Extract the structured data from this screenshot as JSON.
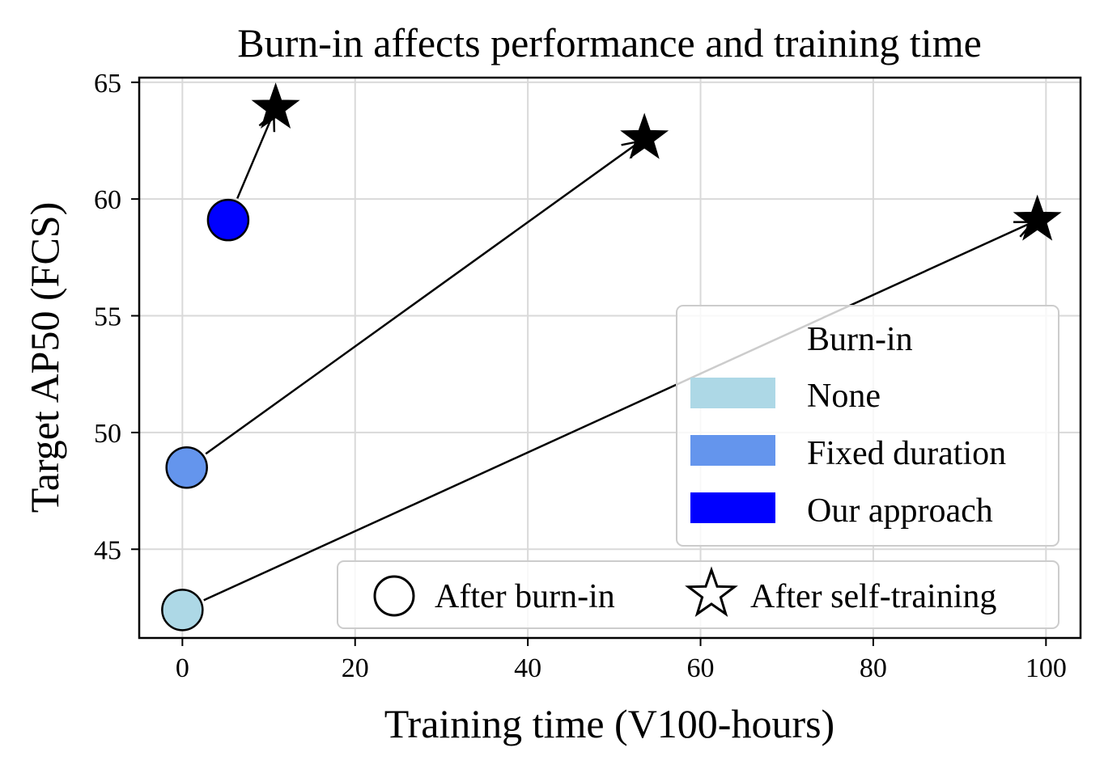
{
  "chart_data": {
    "type": "scatter",
    "title": "Burn-in affects performance and training time",
    "xlabel": "Training time (V100-hours)",
    "ylabel": "Target AP50 (FCS)",
    "xlim": [
      -5,
      104
    ],
    "ylim": [
      41.2,
      65.2
    ],
    "xticks": [
      0,
      20,
      40,
      60,
      80,
      100
    ],
    "yticks": [
      45,
      50,
      55,
      60,
      65
    ],
    "grid": true,
    "series": [
      {
        "name": "None",
        "color": "#add8e6",
        "after_burn_in": {
          "x": 0.0,
          "y": 42.4
        },
        "after_self_training": {
          "x": 99.0,
          "y": 59.1
        }
      },
      {
        "name": "Fixed duration",
        "color": "#6495ed",
        "after_burn_in": {
          "x": 0.5,
          "y": 48.5
        },
        "after_self_training": {
          "x": 53.5,
          "y": 62.6
        }
      },
      {
        "name": "Our approach",
        "color": "#0000ff",
        "after_burn_in": {
          "x": 5.3,
          "y": 59.1
        },
        "after_self_training": {
          "x": 10.8,
          "y": 63.9
        }
      }
    ],
    "legend_color": {
      "title": "Burn-in",
      "entries": [
        "None",
        "Fixed duration",
        "Our approach"
      ],
      "placement": "lower-right"
    },
    "legend_marker": {
      "entries": [
        "After burn-in",
        "After self-training"
      ],
      "icons": [
        "circle-icon",
        "star-icon"
      ],
      "placement": "bottom-right"
    }
  }
}
